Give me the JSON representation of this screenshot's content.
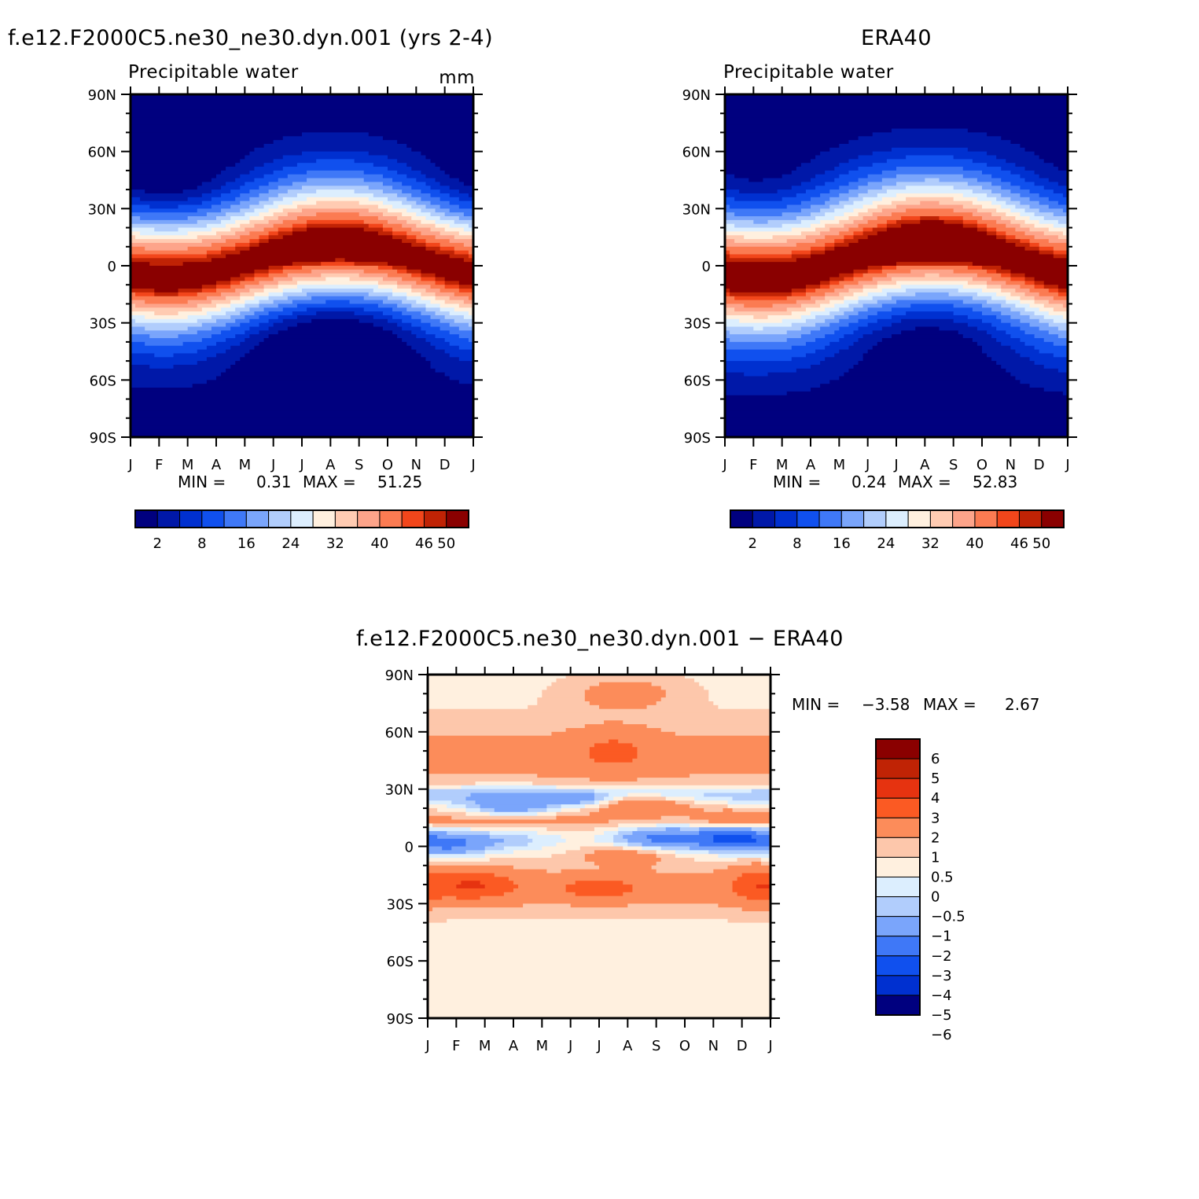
{
  "chart_data": [
    {
      "type": "heatmap",
      "title": "f.e12.F2000C5.ne30_ne30.dyn.001 (yrs 2-4)",
      "variable": "Precipitable water",
      "units": "mm",
      "x_ticks": [
        "J",
        "F",
        "M",
        "A",
        "M",
        "J",
        "J",
        "A",
        "S",
        "O",
        "N",
        "D",
        "J"
      ],
      "y_ticks": [
        "90N",
        "60N",
        "30N",
        "0",
        "30S",
        "60S",
        "90S"
      ],
      "y_range": [
        -90,
        90
      ],
      "stats": {
        "min_label": "MIN =",
        "min": "0.31",
        "max_label": "MAX =",
        "max": "51.25"
      },
      "colorbar": {
        "orientation": "horizontal",
        "labels": [
          "2",
          "8",
          "16",
          "24",
          "32",
          "40",
          "46",
          "50"
        ]
      },
      "field_peaks": {
        "equator_max": 51.25,
        "equator_lat_jan": -5,
        "equator_lat_aug": 10,
        "pole_min": 0.31
      }
    },
    {
      "type": "heatmap",
      "title": "ERA40",
      "variable": "Precipitable water",
      "x_ticks": [
        "J",
        "F",
        "M",
        "A",
        "M",
        "J",
        "J",
        "A",
        "S",
        "O",
        "N",
        "D",
        "J"
      ],
      "y_ticks": [
        "90N",
        "60N",
        "30N",
        "0",
        "30S",
        "60S",
        "90S"
      ],
      "y_range": [
        -90,
        90
      ],
      "stats": {
        "min_label": "MIN =",
        "min": "0.24",
        "max_label": "MAX =",
        "max": "52.83"
      },
      "colorbar": {
        "orientation": "horizontal",
        "labels": [
          "2",
          "8",
          "16",
          "24",
          "32",
          "40",
          "46",
          "50"
        ]
      },
      "field_peaks": {
        "equator_max": 52.83,
        "equator_lat_jan": -5,
        "equator_lat_aug": 10,
        "pole_min": 0.24
      }
    },
    {
      "type": "heatmap",
      "title": "f.e12.F2000C5.ne30_ne30.dyn.001 − ERA40",
      "x_ticks": [
        "J",
        "F",
        "M",
        "A",
        "M",
        "J",
        "J",
        "A",
        "S",
        "O",
        "N",
        "D",
        "J"
      ],
      "y_ticks": [
        "90N",
        "60N",
        "30N",
        "0",
        "30S",
        "60S",
        "90S"
      ],
      "y_range": [
        -90,
        90
      ],
      "stats": {
        "min_label": "MIN =",
        "min": "−3.58",
        "max_label": "MAX =",
        "max": "2.67"
      },
      "colorbar": {
        "orientation": "vertical",
        "labels": [
          "6",
          "5",
          "4",
          "3",
          "2",
          "1",
          "0.5",
          "0",
          "−0.5",
          "−1",
          "−2",
          "−3",
          "−4",
          "−5",
          "−6"
        ]
      }
    }
  ],
  "palettes": {
    "absolute": [
      "#00007f",
      "#0018a8",
      "#0030d0",
      "#1050ee",
      "#3f78f7",
      "#7aa5fb",
      "#b1cdfc",
      "#dceefe",
      "#fff0df",
      "#ffcbb2",
      "#fda48a",
      "#fb7b52",
      "#f2461b",
      "#c02305",
      "#8a0000"
    ],
    "difference": [
      "#8a0000",
      "#c02305",
      "#e63310",
      "#fb5a23",
      "#fc8c5a",
      "#fdc7ab",
      "#fff0df",
      "#dceefe",
      "#b1cdfc",
      "#7aa5fb",
      "#3f78f7",
      "#1050ee",
      "#0030d0",
      "#00007f"
    ]
  }
}
